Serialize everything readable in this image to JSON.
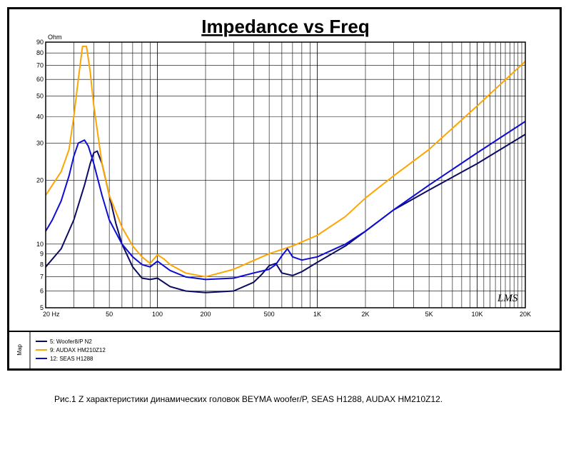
{
  "chart_data": {
    "type": "line",
    "title": "Impedance vs Freq",
    "y_unit_label": "Ohm",
    "x_scale": "log",
    "y_scale": "log",
    "xlim": [
      20,
      20000
    ],
    "ylim": [
      5,
      90
    ],
    "grid": true,
    "x_tick_labels": [
      {
        "v": 20,
        "label": "20  Hz"
      },
      {
        "v": 50,
        "label": "50"
      },
      {
        "v": 100,
        "label": "100"
      },
      {
        "v": 200,
        "label": "200"
      },
      {
        "v": 500,
        "label": "500"
      },
      {
        "v": 1000,
        "label": "1K"
      },
      {
        "v": 2000,
        "label": "2K"
      },
      {
        "v": 5000,
        "label": "5K"
      },
      {
        "v": 10000,
        "label": "10K"
      },
      {
        "v": 20000,
        "label": "20K"
      }
    ],
    "y_tick_labels": [
      {
        "v": 90,
        "label": "90"
      },
      {
        "v": 80,
        "label": "80"
      },
      {
        "v": 70,
        "label": "70"
      },
      {
        "v": 60,
        "label": "60"
      },
      {
        "v": 50,
        "label": "50"
      },
      {
        "v": 40,
        "label": "40"
      },
      {
        "v": 30,
        "label": "30"
      },
      {
        "v": 20,
        "label": "20"
      },
      {
        "v": 10,
        "label": "10"
      },
      {
        "v": 9,
        "label": "9"
      },
      {
        "v": 8,
        "label": "8"
      },
      {
        "v": 7,
        "label": "7"
      },
      {
        "v": 6,
        "label": "6"
      },
      {
        "v": 5,
        "label": "5"
      }
    ],
    "watermark": "LMS",
    "legend_side_label": "Map",
    "legend_placement": "bottom-left",
    "series": [
      {
        "name": "5: Woofer8/P N2",
        "color": "#0b0b62",
        "x": [
          20,
          25,
          30,
          35,
          38,
          40,
          42,
          45,
          50,
          55,
          60,
          70,
          80,
          90,
          100,
          120,
          150,
          200,
          300,
          400,
          450,
          500,
          550,
          600,
          700,
          800,
          1000,
          1500,
          2000,
          3000,
          5000,
          10000,
          20000
        ],
        "y": [
          7.8,
          9.5,
          13,
          19,
          24,
          27,
          27.5,
          24,
          17,
          12.5,
          10,
          7.8,
          6.9,
          6.8,
          6.9,
          6.3,
          6.0,
          5.9,
          6.0,
          6.6,
          7.2,
          7.9,
          8.1,
          7.3,
          7.1,
          7.4,
          8.2,
          9.8,
          11.5,
          14.5,
          18,
          24,
          33
        ]
      },
      {
        "name": "9: AUDAX HM210Z12",
        "color": "#ffa500",
        "x": [
          20,
          25,
          28,
          30,
          32,
          34,
          36,
          38,
          40,
          45,
          50,
          60,
          70,
          80,
          90,
          100,
          110,
          120,
          150,
          200,
          300,
          500,
          700,
          1000,
          1500,
          2000,
          3000,
          5000,
          10000,
          20000
        ],
        "y": [
          17,
          22,
          28,
          40,
          60,
          86,
          86,
          65,
          45,
          24,
          17,
          12,
          9.8,
          8.7,
          8.1,
          8.9,
          8.5,
          8.0,
          7.3,
          7.0,
          7.6,
          9.0,
          9.8,
          11,
          13.5,
          16.5,
          21,
          28,
          45,
          73
        ]
      },
      {
        "name": "12: SEAS H1288",
        "color": "#0d0dd4",
        "x": [
          20,
          22,
          25,
          28,
          30,
          32,
          35,
          37,
          40,
          45,
          50,
          60,
          70,
          80,
          90,
          100,
          120,
          150,
          200,
          300,
          400,
          500,
          550,
          600,
          650,
          700,
          800,
          1000,
          1500,
          2000,
          3000,
          5000,
          10000,
          20000
        ],
        "y": [
          11.5,
          13,
          16,
          21,
          26,
          30,
          31,
          29,
          24,
          17,
          13,
          10,
          8.7,
          8.0,
          7.8,
          8.3,
          7.5,
          7.0,
          6.8,
          6.9,
          7.3,
          7.6,
          8.0,
          8.8,
          9.5,
          8.7,
          8.4,
          8.7,
          10,
          11.5,
          14.5,
          19,
          27,
          38
        ]
      }
    ]
  },
  "caption": "Рис.1 Z характеристики динамических головок BEYMA woofer/P, SEAS H1288, AUDAX HM210Z12."
}
